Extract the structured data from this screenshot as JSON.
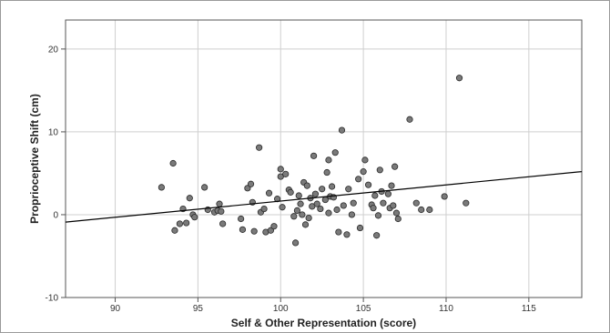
{
  "chart_data": {
    "type": "scatter",
    "xlabel": "Self & Other Representation (score)",
    "ylabel": "Proprioceptive Shift (cm)",
    "xlim": [
      87,
      118.2
    ],
    "ylim": [
      -10,
      23.5
    ],
    "xticks": [
      90,
      95,
      100,
      105,
      110,
      115
    ],
    "yticks": [
      -10,
      0,
      10,
      20
    ],
    "grid": true,
    "legend": "none",
    "colors": {
      "point_fill": "#7a7a7a",
      "point_stroke": "#2a2a2a",
      "grid": "#cfcfcf",
      "axis": "#555555",
      "fit_line": "#000000"
    },
    "fit_line": {
      "x": [
        87,
        118.2
      ],
      "y": [
        -0.9,
        5.2
      ]
    },
    "points": [
      [
        92.8,
        3.3
      ],
      [
        93.5,
        6.2
      ],
      [
        93.6,
        -1.9
      ],
      [
        93.9,
        -1.1
      ],
      [
        94.1,
        0.7
      ],
      [
        94.3,
        -1.0
      ],
      [
        94.5,
        2.0
      ],
      [
        94.7,
        0.0
      ],
      [
        94.8,
        -0.3
      ],
      [
        95.4,
        3.3
      ],
      [
        95.6,
        0.6
      ],
      [
        96.0,
        0.3
      ],
      [
        96.2,
        0.5
      ],
      [
        96.3,
        1.3
      ],
      [
        96.4,
        0.4
      ],
      [
        96.5,
        -1.1
      ],
      [
        97.6,
        -0.5
      ],
      [
        97.7,
        -1.8
      ],
      [
        98.0,
        3.2
      ],
      [
        98.2,
        3.7
      ],
      [
        98.3,
        1.5
      ],
      [
        98.4,
        -2.0
      ],
      [
        98.7,
        8.1
      ],
      [
        98.8,
        0.3
      ],
      [
        99.0,
        0.7
      ],
      [
        99.1,
        -2.1
      ],
      [
        99.3,
        2.6
      ],
      [
        99.4,
        -1.9
      ],
      [
        99.6,
        -1.4
      ],
      [
        99.8,
        1.9
      ],
      [
        100.0,
        4.6
      ],
      [
        100.0,
        5.5
      ],
      [
        100.1,
        0.9
      ],
      [
        100.3,
        4.9
      ],
      [
        100.5,
        3.0
      ],
      [
        100.6,
        2.7
      ],
      [
        100.8,
        -0.2
      ],
      [
        100.9,
        -3.4
      ],
      [
        101.0,
        0.5
      ],
      [
        101.1,
        2.3
      ],
      [
        101.2,
        1.3
      ],
      [
        101.3,
        0.0
      ],
      [
        101.4,
        3.9
      ],
      [
        101.5,
        -1.2
      ],
      [
        101.6,
        3.5
      ],
      [
        101.7,
        -0.4
      ],
      [
        101.8,
        2.0
      ],
      [
        101.9,
        1.0
      ],
      [
        102.0,
        7.1
      ],
      [
        102.1,
        2.5
      ],
      [
        102.2,
        1.3
      ],
      [
        102.4,
        0.7
      ],
      [
        102.5,
        3.1
      ],
      [
        102.7,
        1.8
      ],
      [
        102.8,
        5.1
      ],
      [
        102.9,
        0.2
      ],
      [
        102.9,
        6.6
      ],
      [
        103.0,
        2.2
      ],
      [
        103.1,
        3.4
      ],
      [
        103.2,
        2.1
      ],
      [
        103.3,
        7.5
      ],
      [
        103.4,
        0.6
      ],
      [
        103.5,
        -2.1
      ],
      [
        103.7,
        10.2
      ],
      [
        103.8,
        1.1
      ],
      [
        104.0,
        -2.4
      ],
      [
        104.1,
        3.1
      ],
      [
        104.3,
        0.0
      ],
      [
        104.4,
        1.4
      ],
      [
        104.7,
        4.3
      ],
      [
        104.8,
        -1.6
      ],
      [
        105.0,
        5.2
      ],
      [
        105.1,
        6.6
      ],
      [
        105.3,
        3.6
      ],
      [
        105.5,
        1.2
      ],
      [
        105.6,
        0.8
      ],
      [
        105.7,
        2.3
      ],
      [
        105.8,
        -2.5
      ],
      [
        105.9,
        -0.1
      ],
      [
        106.0,
        5.4
      ],
      [
        106.1,
        2.8
      ],
      [
        106.2,
        1.4
      ],
      [
        106.5,
        2.5
      ],
      [
        106.6,
        0.8
      ],
      [
        106.7,
        3.5
      ],
      [
        106.8,
        1.1
      ],
      [
        106.9,
        5.8
      ],
      [
        107.0,
        0.2
      ],
      [
        107.1,
        -0.5
      ],
      [
        107.8,
        11.5
      ],
      [
        108.2,
        1.4
      ],
      [
        108.5,
        0.6
      ],
      [
        109.0,
        0.6
      ],
      [
        109.9,
        2.2
      ],
      [
        110.8,
        16.5
      ],
      [
        111.2,
        1.4
      ]
    ]
  }
}
